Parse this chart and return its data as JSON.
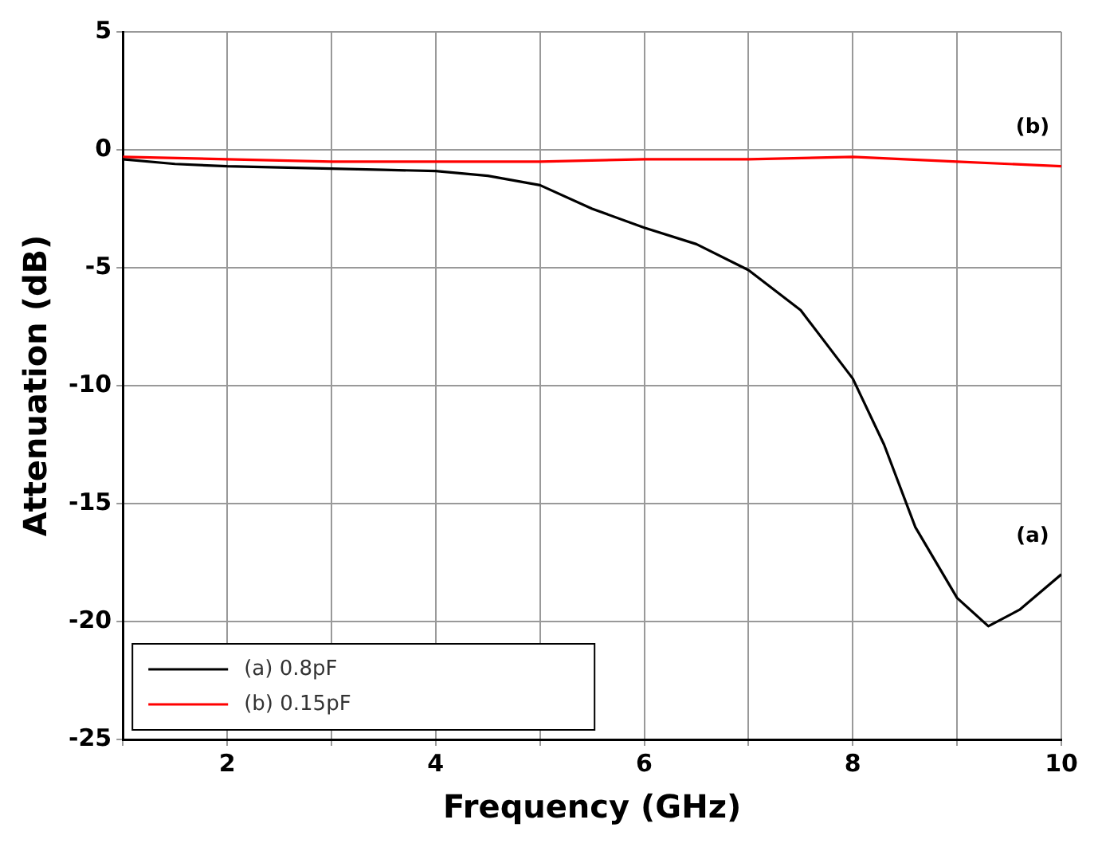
{
  "chart_data": {
    "type": "line",
    "xlabel": "Frequency (GHz)",
    "ylabel": "Attenuation (dB)",
    "xlim": [
      1,
      10
    ],
    "xticks": [
      {
        "value": 1,
        "label": null
      },
      2,
      {
        "value": 3,
        "label": null
      },
      4,
      {
        "value": 5,
        "label": null
      },
      6,
      {
        "value": 7,
        "label": null
      },
      8,
      {
        "value": 9,
        "label": null
      },
      10
    ],
    "ylim": [
      -25,
      5
    ],
    "yticks": [
      -25,
      -20,
      -15,
      -10,
      -5,
      0,
      5
    ],
    "grid": true,
    "legend": "bottom left",
    "marker": "none",
    "line_style": "solid",
    "series": [
      {
        "name": "(a) 0.8pF",
        "color": "#000000",
        "x": [
          1,
          1.5,
          2,
          2.5,
          3,
          3.5,
          4,
          4.5,
          5,
          5.5,
          6,
          6.5,
          7,
          7.5,
          8,
          8.3,
          8.6,
          9,
          9.3,
          9.6,
          10
        ],
        "values": [
          -0.4,
          -0.6,
          -0.7,
          -0.75,
          -0.8,
          -0.85,
          -0.9,
          -1.1,
          -1.5,
          -2.5,
          -3.3,
          -4,
          -5.1,
          -6.8,
          -9.7,
          -12.5,
          -16,
          -19,
          -20.2,
          -19.5,
          -18
        ]
      },
      {
        "name": "(b) 0.15pF",
        "color": "#ff0000",
        "x": [
          1,
          2,
          3,
          4,
          5,
          6,
          7,
          8,
          9,
          10
        ],
        "values": [
          -0.3,
          -0.4,
          -0.5,
          -0.5,
          -0.5,
          -0.4,
          -0.4,
          -0.3,
          -0.5,
          -0.7
        ]
      }
    ],
    "annotations": [
      "(a)",
      "(b)"
    ]
  }
}
